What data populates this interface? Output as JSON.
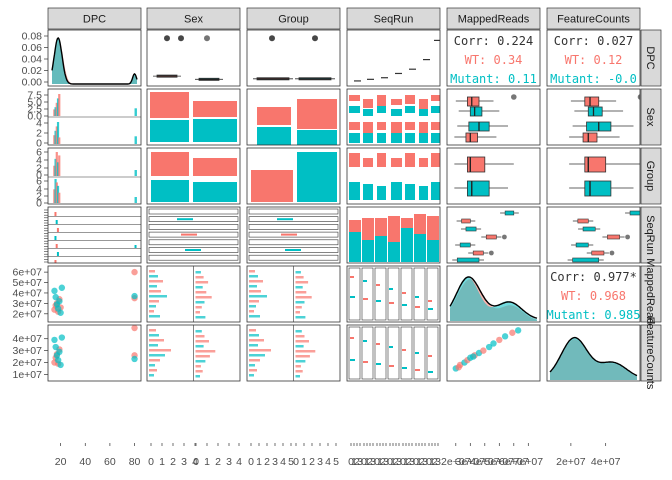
{
  "chart_data": {
    "type": "scatterplot-matrix",
    "variables": [
      "DPC",
      "Sex",
      "Group",
      "SeqRun",
      "MappedReads",
      "FeatureCounts"
    ],
    "colors": {
      "WT": "#F8766D",
      "Mutant": "#00BFC4",
      "overall": "#000000"
    },
    "groups": [
      "WT",
      "Mutant"
    ],
    "axes": {
      "DPC_x_ticks": [
        "20",
        "40",
        "60",
        "80"
      ],
      "Sex_x_ticks": [
        "0",
        "1",
        "2",
        "3",
        "4"
      ],
      "Group_x_ticks": [
        "0",
        "1",
        "2",
        "3",
        "4",
        "5"
      ],
      "SeqRun_x_ticks": [
        "0",
        "1",
        "2",
        "3"
      ],
      "MappedReads_x_ticks": [
        "2e+07",
        "3e+07",
        "4e+07",
        "5e+07",
        "6e+07",
        "7e+07"
      ],
      "FeatureCounts_x_ticks": [
        "2e+07",
        "4e+07"
      ],
      "DPC_y_ticks": [
        "0.00",
        "0.02",
        "0.04",
        "0.06",
        "0.08"
      ],
      "Sex_y_ticks": [
        "0.0",
        "2.5",
        "5.0",
        "7.5",
        "0",
        "2",
        "4"
      ],
      "Group_y_ticks": [
        "0",
        "2",
        "4",
        "6",
        "0",
        "2",
        "4",
        "6"
      ],
      "MappedReads_y_ticks": [
        "2e+07",
        "3e+07",
        "4e+07",
        "5e+07",
        "6e+07"
      ],
      "FeatureCounts_y_ticks": [
        "1e+07",
        "2e+07",
        "3e+07",
        "4e+07"
      ]
    },
    "correlations": [
      {
        "pair": [
          "DPC",
          "MappedReads"
        ],
        "overall": "Corr: 0.224",
        "WT": "WT: 0.34",
        "Mutant": "Mutant: 0.11"
      },
      {
        "pair": [
          "DPC",
          "FeatureCounts"
        ],
        "overall": "Corr: 0.027",
        "WT": "WT: 0.12",
        "Mutant": "Mutant: -0.0"
      },
      {
        "pair": [
          "MappedReads",
          "FeatureCounts"
        ],
        "overall": "Corr: 0.977*",
        "WT": "WT: 0.968",
        "Mutant": "Mutant: 0.985"
      }
    ],
    "dpc_box": {
      "WT": [
        9,
        11,
        13
      ],
      "Mutant": [
        3,
        5,
        7
      ],
      "outliers": [
        [
          0.082,
          0
        ],
        [
          0.082,
          1
        ]
      ]
    },
    "scatter_mapped_dpc": {
      "WT": [
        [
          15,
          24000000.0
        ],
        [
          16,
          28000000.0
        ],
        [
          17,
          30000000.0
        ],
        [
          18,
          22000000.0
        ],
        [
          19,
          34000000.0
        ],
        [
          20,
          26000000.0
        ],
        [
          80,
          60000000.0
        ],
        [
          80,
          35000000.0
        ]
      ],
      "Mutant": [
        [
          15,
          42000000.0
        ],
        [
          16,
          36000000.0
        ],
        [
          17,
          29000000.0
        ],
        [
          18,
          25000000.0
        ],
        [
          19,
          32000000.0
        ],
        [
          20,
          21000000.0
        ],
        [
          21,
          45000000.0
        ],
        [
          80,
          37000000.0
        ]
      ]
    },
    "scatter_feature_dpc": {
      "WT": [
        [
          15,
          20000000.0
        ],
        [
          16,
          24000000.0
        ],
        [
          17,
          27000000.0
        ],
        [
          18,
          19000000.0
        ],
        [
          19,
          31000000.0
        ],
        [
          80,
          26000000.0
        ],
        [
          80,
          49000000.0
        ]
      ],
      "Mutant": [
        [
          15,
          39000000.0
        ],
        [
          16,
          33000000.0
        ],
        [
          17,
          26000000.0
        ],
        [
          18,
          22000000.0
        ],
        [
          19,
          29000000.0
        ],
        [
          20,
          18000000.0
        ],
        [
          21,
          41000000.0
        ],
        [
          80,
          23000000.0
        ]
      ]
    }
  }
}
